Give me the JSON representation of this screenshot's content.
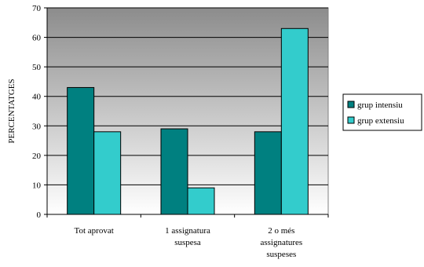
{
  "colors": {
    "intensiu": "#008080",
    "extensiu": "#33CCCC",
    "plot_top": "#8c8c8c",
    "plot_bottom": "#ffffff",
    "gridline": "#000000",
    "bar_stroke": "#000000"
  },
  "chart_data": {
    "type": "bar",
    "title": "",
    "xlabel": "",
    "ylabel": "PERCENTATGES",
    "ylim": [
      0,
      70
    ],
    "ytick_step": 10,
    "grid": true,
    "legend_position": "right",
    "categories": [
      [
        "Tot aprovat"
      ],
      [
        "1 assignatura",
        "suspesa"
      ],
      [
        "2 o més",
        "assignatures",
        "suspeses"
      ]
    ],
    "series": [
      {
        "name": "grup intensiu",
        "color_key": "intensiu",
        "values": [
          43,
          29,
          28
        ]
      },
      {
        "name": "grup extensiu",
        "color_key": "extensiu",
        "values": [
          28,
          9,
          63
        ]
      }
    ]
  }
}
